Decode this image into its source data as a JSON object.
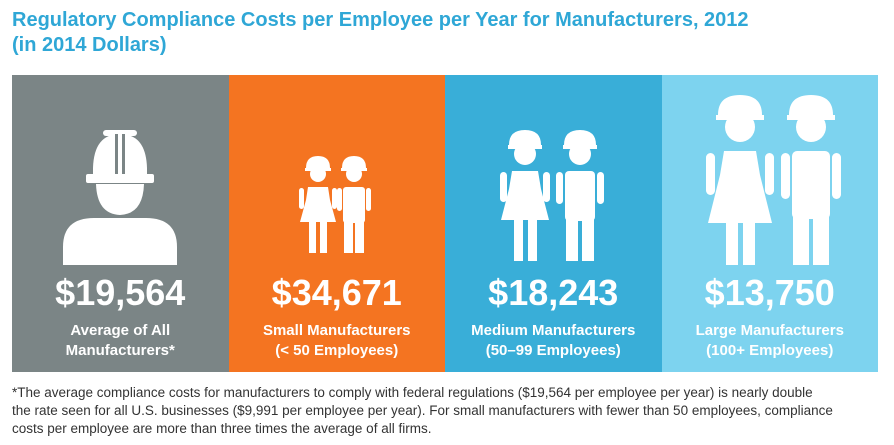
{
  "title_line1": "Regulatory Compliance Costs per Employee per Year for Manufacturers, 2012",
  "title_line2": "(in 2014 Dollars)",
  "colors": {
    "title": "#2fa7d6",
    "panel_average": "#7b8586",
    "panel_small": "#f47421",
    "panel_medium": "#39aed8",
    "panel_large": "#7dd3ef"
  },
  "chart_data": {
    "type": "bar",
    "title": "Regulatory Compliance Costs per Employee per Year for Manufacturers, 2012 (in 2014 Dollars)",
    "unit": "USD per employee per year",
    "categories": [
      "Average of All Manufacturers*",
      "Small Manufacturers (< 50 Employees)",
      "Medium Manufacturers (50–99 Employees)",
      "Large Manufacturers (100+ Employees)"
    ],
    "values": [
      19564,
      34671,
      18243,
      13750
    ]
  },
  "panels": [
    {
      "value": "$19,564",
      "label_line1": "Average of All",
      "label_line2": "Manufacturers*",
      "icon": "worker-icon"
    },
    {
      "value": "$34,671",
      "label_line1": "Small Manufacturers",
      "label_line2": "(< 50 Employees)",
      "icon": "small-workers-icon"
    },
    {
      "value": "$18,243",
      "label_line1": "Medium Manufacturers",
      "label_line2": "(50–99 Employees)",
      "icon": "medium-workers-icon"
    },
    {
      "value": "$13,750",
      "label_line1": "Large Manufacturers",
      "label_line2": "(100+ Employees)",
      "icon": "large-workers-icon"
    }
  ],
  "footnote": {
    "line1": "*The average compliance costs for manufacturers to comply with federal regulations ($19,564 per employee per year) is nearly double",
    "line2": "the rate seen for all U.S. businesses ($9,991 per employee per year). For small manufacturers with fewer than 50 employees, compliance",
    "line3": "costs per employee are more than three times the average of all firms."
  }
}
